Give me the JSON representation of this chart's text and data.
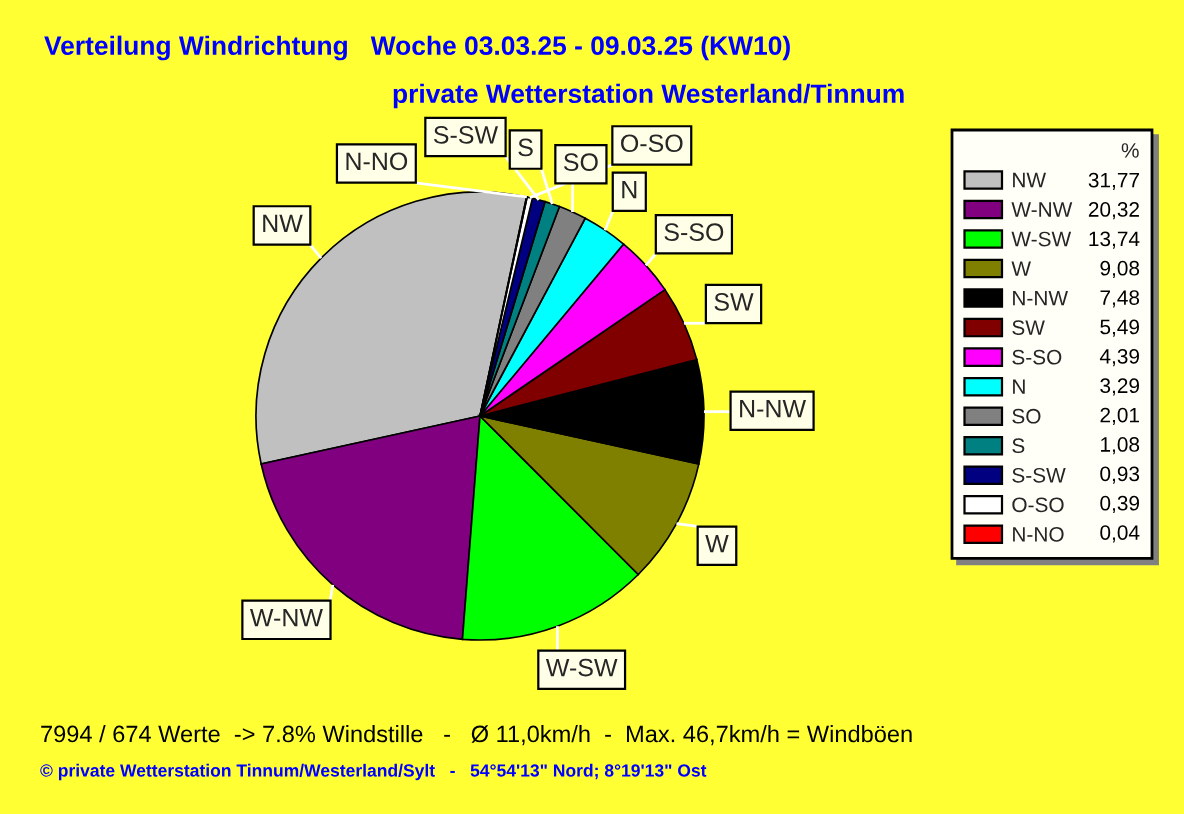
{
  "chart_data": {
    "type": "pie",
    "title": "Verteilung Windrichtung   Woche 03.03.25 - 09.03.25 (KW10)",
    "subtitle": "private Wetterstation Westerland/Tinnum",
    "categories": [
      "NW",
      "W-NW",
      "W-SW",
      "W",
      "N-NW",
      "SW",
      "S-SO",
      "N",
      "SO",
      "S",
      "S-SW",
      "O-SO",
      "N-NO"
    ],
    "values": [
      31.77,
      20.32,
      13.74,
      9.08,
      7.48,
      5.49,
      4.39,
      3.29,
      2.01,
      1.08,
      0.93,
      0.39,
      0.04
    ],
    "colors": [
      "#c0c0c0",
      "#800080",
      "#00ff00",
      "#808000",
      "#000000",
      "#800000",
      "#ff00ff",
      "#00ffff",
      "#808080",
      "#008080",
      "#000080",
      "#ffffff",
      "#ff0000"
    ],
    "value_labels": [
      "31,77",
      "20,32",
      "13,74",
      "9,08",
      "7,48",
      "5,49",
      "4,39",
      "3,29",
      "2,01",
      "1,08",
      "0,93",
      "0,39",
      "0,04"
    ],
    "legend": "right",
    "legend_title": "%",
    "annotations": [
      "7994 / 674 Werte  -> 7.8% Windstille   -   Ø 11,0km/h  -  Max. 46,7km/h = Windböen",
      "© private Wetterstation Tinnum/Westerland/Sylt   -   54°54'13\" Nord; 8°19'13\" Ost"
    ]
  }
}
